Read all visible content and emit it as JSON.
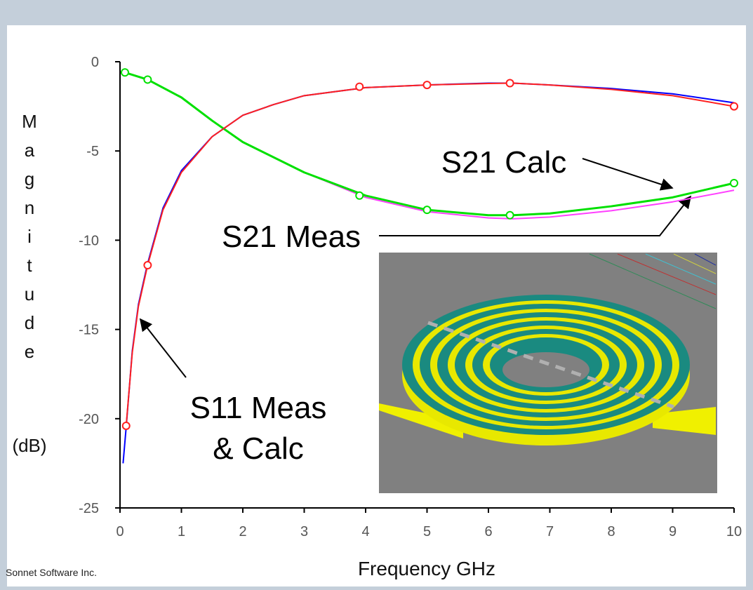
{
  "chart_data": {
    "type": "line",
    "y_label": "Magnitude",
    "y_unit": "(dB)",
    "x_label": "Frequency GHz",
    "footer": "Sonnet Software Inc.",
    "xlim": [
      0,
      10
    ],
    "xticks": [
      0,
      1,
      2,
      3,
      4,
      5,
      6,
      7,
      8,
      9,
      10
    ],
    "ylim": [
      -25,
      0
    ],
    "yticks": [
      0,
      -5,
      -10,
      -15,
      -20,
      -25
    ],
    "series": [
      {
        "color": "#0000ff",
        "style": "line",
        "x": [
          0.05,
          0.1,
          0.2,
          0.3,
          0.45,
          0.7,
          1,
          1.5,
          2,
          2.5,
          3,
          4,
          5,
          6,
          6.4,
          7,
          8,
          9,
          10
        ],
        "values": [
          -22.5,
          -20.5,
          -16.2,
          -13.6,
          -11.3,
          -8.2,
          -6.1,
          -4.2,
          -3,
          -2.4,
          -1.9,
          -1.45,
          -1.3,
          -1.2,
          -1.2,
          -1.3,
          -1.5,
          -1.8,
          -2.3
        ]
      },
      {
        "color": "#ff2020",
        "style": "line",
        "x": [
          0.1,
          0.2,
          0.3,
          0.45,
          0.7,
          1,
          1.5,
          2,
          2.5,
          3,
          4,
          5,
          6,
          6.4,
          7,
          8,
          9,
          10
        ],
        "values": [
          -20.4,
          -16.3,
          -13.7,
          -11.4,
          -8.3,
          -6.2,
          -4.2,
          -3,
          -2.4,
          -1.9,
          -1.45,
          -1.3,
          -1.22,
          -1.2,
          -1.3,
          -1.55,
          -1.9,
          -2.5
        ]
      },
      {
        "color": "#ff40ff",
        "style": "line",
        "x": [
          0.08,
          0.45,
          1,
          1.5,
          2,
          3,
          4,
          5,
          6,
          6.4,
          7,
          8,
          9,
          10
        ],
        "values": [
          -0.6,
          -1,
          -2,
          -3.3,
          -4.5,
          -6.2,
          -7.6,
          -8.4,
          -8.75,
          -8.8,
          -8.7,
          -8.35,
          -7.85,
          -7.2
        ]
      },
      {
        "color": "#00e000",
        "style": "line",
        "x": [
          0.08,
          0.45,
          1,
          1.5,
          2,
          3,
          4,
          5,
          6,
          6.4,
          7,
          8,
          9,
          10
        ],
        "values": [
          -0.6,
          -1,
          -2,
          -3.3,
          -4.5,
          -6.2,
          -7.5,
          -8.3,
          -8.6,
          -8.6,
          -8.5,
          -8.1,
          -7.6,
          -6.8
        ]
      },
      {
        "color": "#ff2020",
        "style": "markers",
        "x": [
          0.1,
          0.45,
          3.9,
          5,
          6.35,
          10
        ],
        "values": [
          -20.4,
          -11.4,
          -1.4,
          -1.3,
          -1.2,
          -2.5
        ]
      },
      {
        "color": "#00e000",
        "style": "markers",
        "x": [
          0.08,
          0.45,
          3.9,
          5,
          6.35,
          10
        ],
        "values": [
          -0.6,
          -1,
          -7.5,
          -8.3,
          -8.6,
          -6.8
        ]
      }
    ],
    "annotations": [
      {
        "lines": [
          "S21 Calc"
        ]
      },
      {
        "lines": [
          "S21 Meas"
        ]
      },
      {
        "lines": [
          "S11 Meas",
          "& Calc"
        ]
      }
    ]
  }
}
